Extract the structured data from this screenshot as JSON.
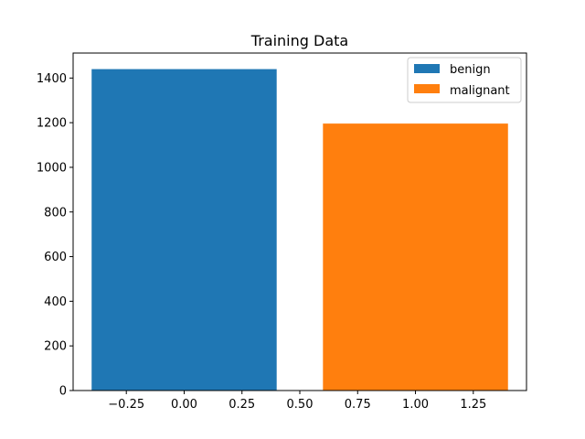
{
  "chart_data": {
    "type": "bar",
    "title": "Training Data",
    "xlabel": "",
    "ylabel": "",
    "xlim": [
      -0.48,
      1.48
    ],
    "ylim": [
      0,
      1512
    ],
    "xticks": [
      -0.25,
      0.0,
      0.25,
      0.5,
      0.75,
      1.0,
      1.25
    ],
    "xtick_labels": [
      "−0.25",
      "0.00",
      "0.25",
      "0.50",
      "0.75",
      "1.00",
      "1.25"
    ],
    "yticks": [
      0,
      200,
      400,
      600,
      800,
      1000,
      1200,
      1400
    ],
    "ytick_labels": [
      "0",
      "200",
      "400",
      "600",
      "800",
      "1000",
      "1200",
      "1400"
    ],
    "bar_width": 0.8,
    "legend_position": "top-right",
    "series": [
      {
        "name": "benign",
        "x": 0,
        "value": 1440,
        "color": "#1f77b4"
      },
      {
        "name": "malignant",
        "x": 1,
        "value": 1196,
        "color": "#ff7f0e"
      }
    ]
  }
}
